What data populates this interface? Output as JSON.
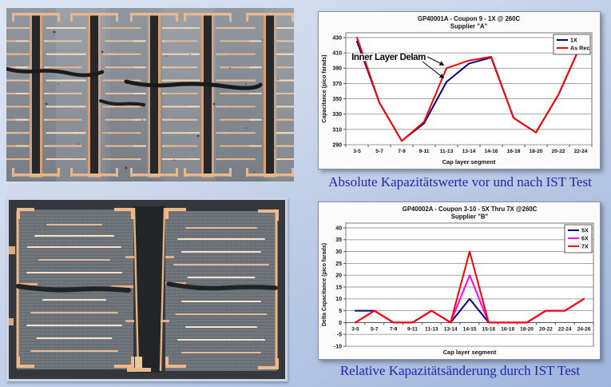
{
  "captions": {
    "absolute": "Absolute Kapazitätswerte vor und nach IST Test",
    "relative": "Relative Kapazitätsänderung durch IST Test"
  },
  "chart_data": [
    {
      "type": "line",
      "title": "GP40001A - Coupon 9 - 1X @ 260C",
      "subtitle": "Supplier \"A\"",
      "xlabel": "Cap layer segment",
      "ylabel": "Capacitance (pico farads)",
      "ylim": [
        290,
        430
      ],
      "ytick_step": 20,
      "grid": true,
      "legend_position": "top-right-inside",
      "categories": [
        "3-5",
        "5-7",
        "7-9",
        "9-11",
        "11-13",
        "13-14",
        "14-16",
        "16-18",
        "18-20",
        "20-22",
        "22-24"
      ],
      "series": [
        {
          "name": "1X",
          "color": "#000080",
          "values": [
            425,
            345,
            295,
            318,
            372,
            396,
            404,
            325,
            306,
            355,
            420
          ]
        },
        {
          "name": "As Rec",
          "color": "#FF0000",
          "values": [
            430,
            345,
            295,
            320,
            390,
            400,
            405,
            325,
            306,
            355,
            420
          ]
        }
      ],
      "annotation": {
        "text": "Inner Layer Delam",
        "points_to": [
          {
            "series": "As Rec",
            "category": "11-13"
          },
          {
            "series": "1X",
            "category": "11-13"
          }
        ]
      }
    },
    {
      "type": "line",
      "title": "GP40002A - Coupon 3-10 - 5X Thru 7X @260C",
      "subtitle": "Supplier \"B\"",
      "xlabel": "Cap layer segment",
      "ylabel": "Delta Capacitance (pico farads)",
      "ylim": [
        -10,
        40
      ],
      "ytick_step": 5,
      "grid": true,
      "legend_position": "top-right-inside",
      "categories": [
        "3-5",
        "5-7",
        "7-9",
        "9-11",
        "11-13",
        "13-14",
        "14-15",
        "15-16",
        "16-18",
        "18-20",
        "20-22",
        "22-24",
        "24-26"
      ],
      "series": [
        {
          "name": "5X",
          "color": "#000080",
          "values": [
            5,
            5,
            0,
            0,
            5,
            0,
            10,
            0,
            0,
            0,
            5,
            5,
            10
          ]
        },
        {
          "name": "6X",
          "color": "#FF00FF",
          "values": [
            0,
            5,
            0,
            0,
            5,
            0,
            20,
            0,
            0,
            0,
            5,
            5,
            10
          ]
        },
        {
          "name": "7X",
          "color": "#FF0000",
          "values": [
            0,
            5,
            0,
            0,
            5,
            0,
            30,
            0,
            0,
            0,
            5,
            5,
            10
          ]
        }
      ]
    }
  ]
}
